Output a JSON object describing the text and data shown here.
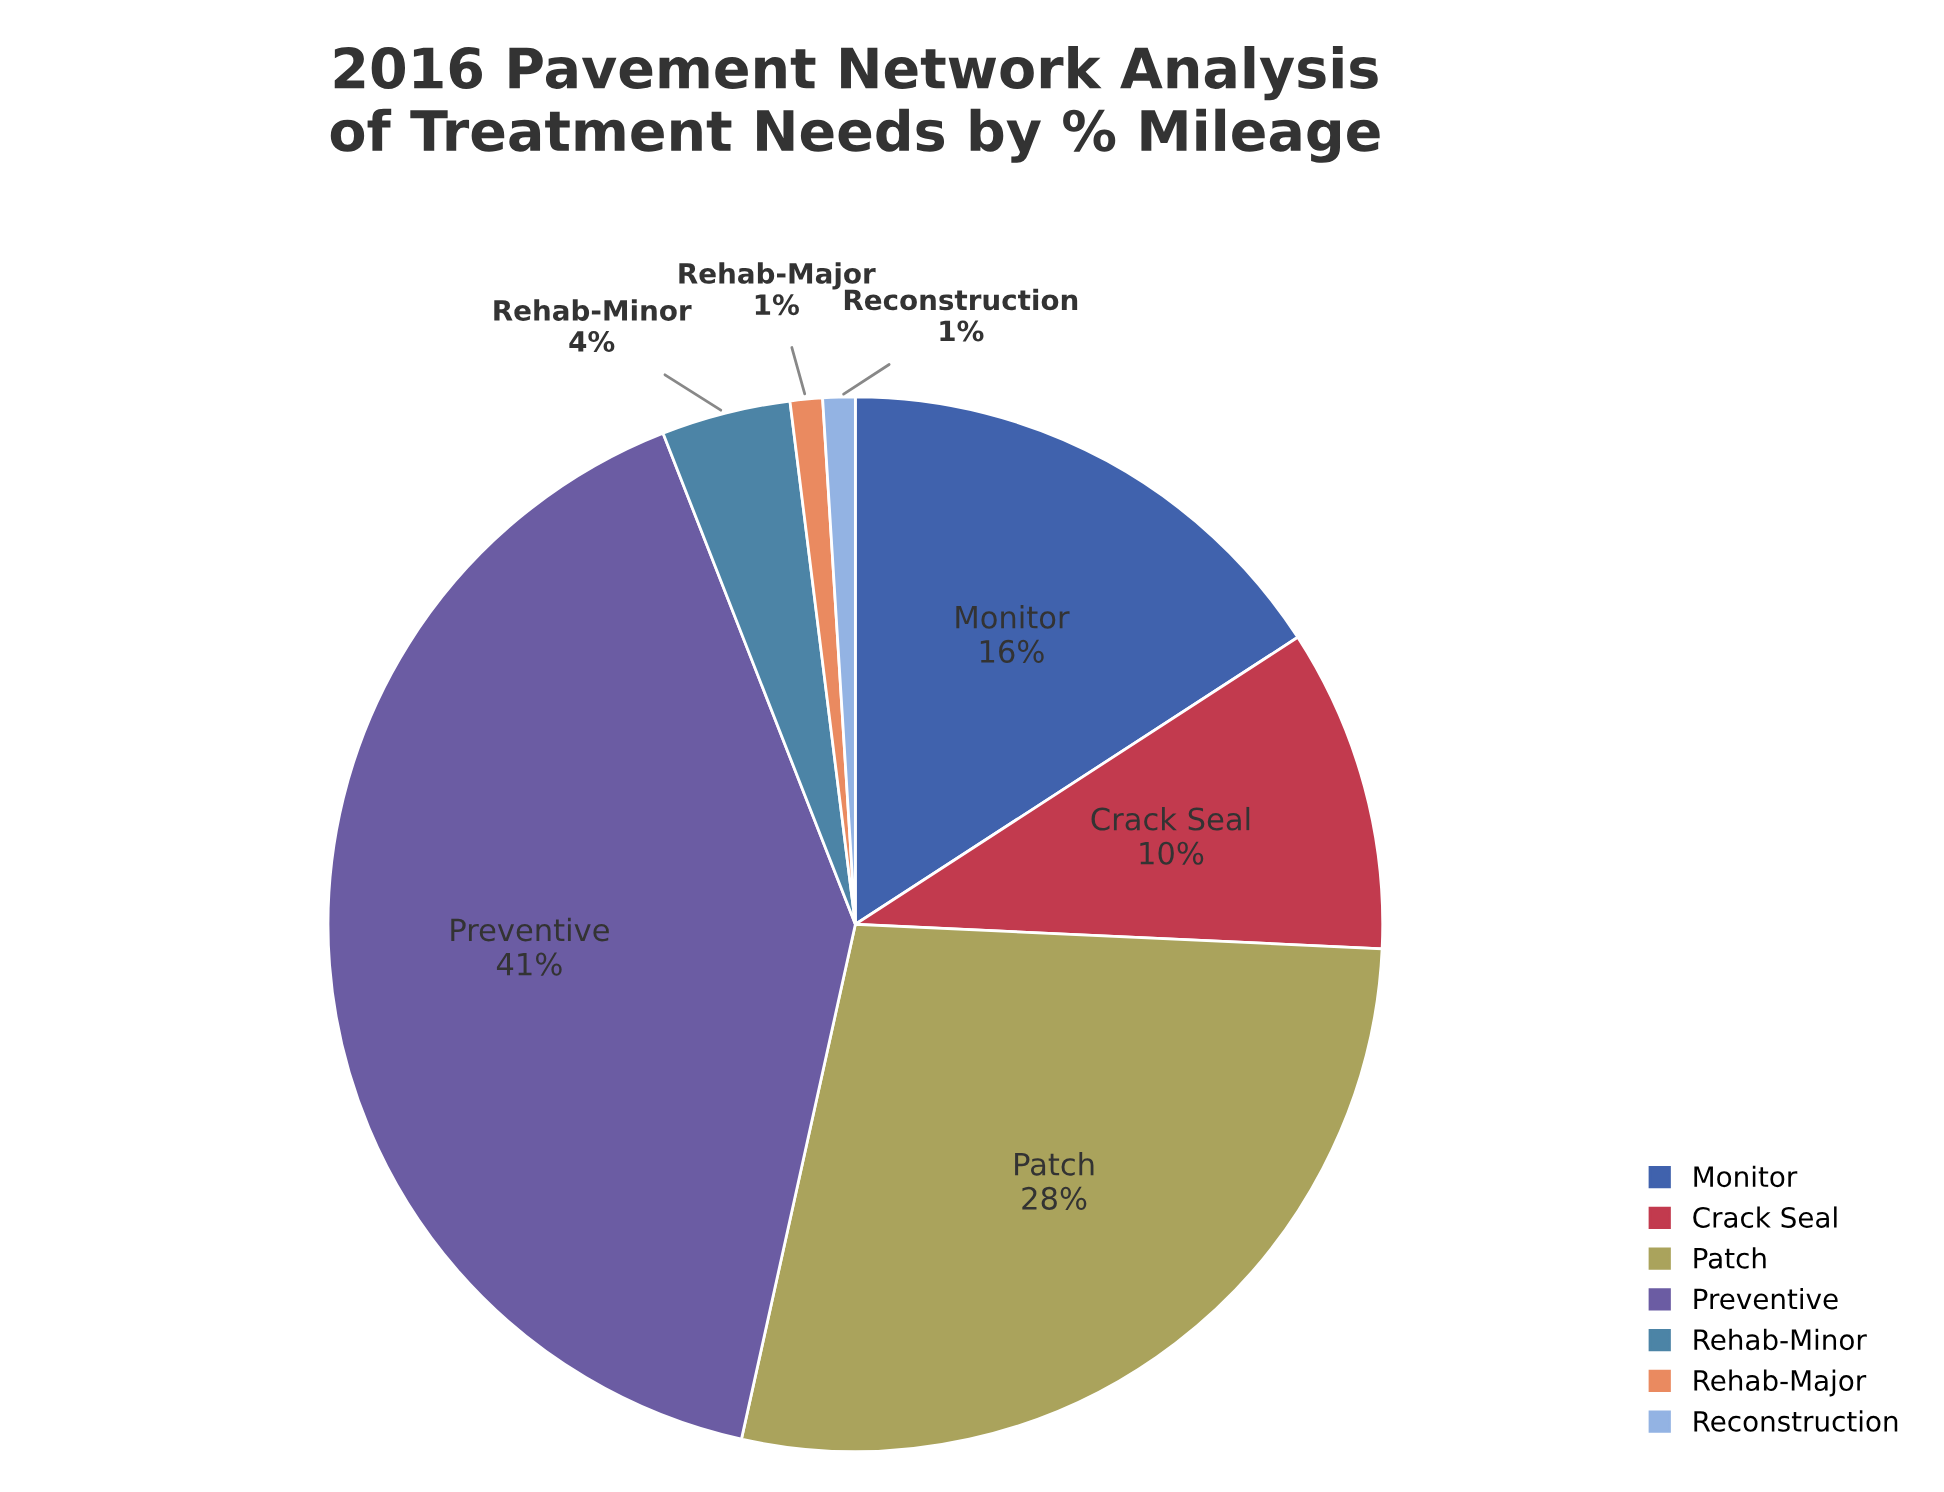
{
  "chart_data": {
    "type": "pie",
    "title": "2016 Pavement Network Analysis\nof Treatment Needs by % Mileage",
    "categories": [
      "Monitor",
      "Crack Seal",
      "Patch",
      "Preventive",
      "Rehab-Minor",
      "Rehab-Major",
      "Reconstruction"
    ],
    "values": [
      16,
      10,
      28,
      41,
      4,
      1,
      1
    ],
    "value_labels": [
      "16%",
      "10%",
      "28%",
      "41%",
      "4%",
      "1%",
      "1%"
    ],
    "colors": [
      "#4062ad",
      "#c23a4e",
      "#aaa35c",
      "#6b5ca3",
      "#4c84a6",
      "#ea8a60",
      "#93b3e3"
    ],
    "legend": "bottom right"
  }
}
